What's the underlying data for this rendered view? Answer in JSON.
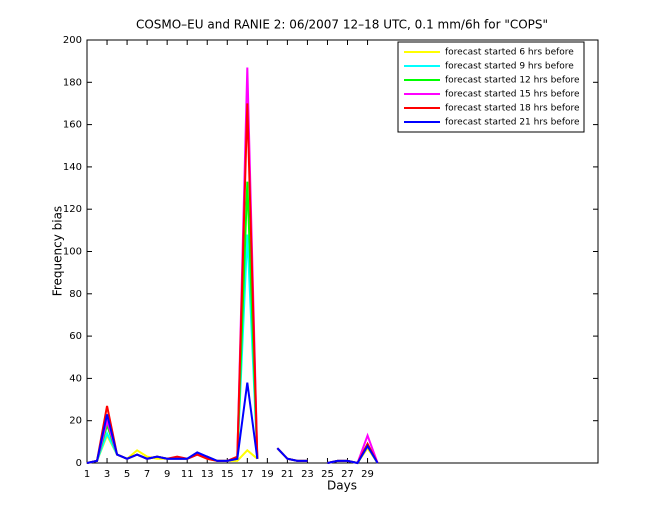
{
  "chart_data": {
    "type": "line",
    "title": "COSMO–EU and RANIE 2: 06/2007 12–18 UTC, 0.1 mm/6h for \"COPS\"",
    "x_label": "Days",
    "y_label": "Frequency bias",
    "x": [
      1,
      2,
      3,
      4,
      5,
      6,
      7,
      8,
      9,
      10,
      11,
      12,
      13,
      14,
      15,
      16,
      17,
      18,
      19,
      20,
      21,
      22,
      23,
      24,
      25,
      26,
      27,
      28,
      29,
      30
    ],
    "series": [
      {
        "name": "forecast started 6 hrs before",
        "color": "#ffff00",
        "values": [
          0,
          1,
          13,
          4,
          2,
          6,
          3,
          2,
          2,
          2,
          2,
          4,
          2,
          1,
          1,
          1,
          6,
          2,
          null,
          7,
          2,
          1,
          1,
          null,
          0,
          1,
          1,
          0,
          7,
          0
        ]
      },
      {
        "name": "forecast started 9 hrs before",
        "color": "#00ffff",
        "values": [
          0,
          1,
          14,
          4,
          2,
          4,
          2,
          3,
          2,
          2,
          2,
          4,
          3,
          1,
          1,
          2,
          108,
          2,
          null,
          7,
          2,
          1,
          1,
          null,
          0,
          1,
          1,
          0,
          8,
          0
        ]
      },
      {
        "name": "forecast started 12 hrs before",
        "color": "#00ff00",
        "values": [
          0,
          1,
          18,
          4,
          2,
          4,
          2,
          3,
          2,
          2,
          2,
          4,
          3,
          1,
          1,
          2,
          133,
          2,
          null,
          7,
          2,
          1,
          1,
          null,
          0,
          1,
          1,
          0,
          9,
          0
        ]
      },
      {
        "name": "forecast started 15 hrs before",
        "color": "#ff00ff",
        "values": [
          0,
          1,
          20,
          4,
          2,
          4,
          2,
          3,
          2,
          2,
          2,
          4,
          3,
          1,
          1,
          2,
          187,
          2,
          null,
          7,
          2,
          1,
          1,
          null,
          0,
          1,
          1,
          0,
          13,
          0
        ]
      },
      {
        "name": "forecast started 18 hrs before",
        "color": "#ff0000",
        "values": [
          0,
          1,
          27,
          4,
          2,
          4,
          2,
          3,
          2,
          3,
          2,
          4,
          2,
          1,
          1,
          3,
          170,
          2,
          null,
          7,
          2,
          1,
          1,
          null,
          0,
          1,
          1,
          0,
          9,
          0
        ]
      },
      {
        "name": "forecast started 21 hrs before",
        "color": "#0000ff",
        "values": [
          0,
          1,
          23,
          4,
          2,
          4,
          2,
          3,
          2,
          2,
          2,
          5,
          3,
          1,
          1,
          2,
          38,
          2,
          null,
          7,
          2,
          1,
          1,
          null,
          0,
          1,
          1,
          0,
          8,
          0
        ]
      }
    ],
    "xlim": [
      1,
      52
    ],
    "ylim": [
      0,
      200
    ],
    "xticks": [
      1,
      3,
      5,
      7,
      9,
      11,
      13,
      15,
      17,
      19,
      21,
      23,
      25,
      27,
      29
    ],
    "yticks": [
      0,
      20,
      40,
      60,
      80,
      100,
      120,
      140,
      160,
      180,
      200
    ],
    "legend": "upper right"
  }
}
